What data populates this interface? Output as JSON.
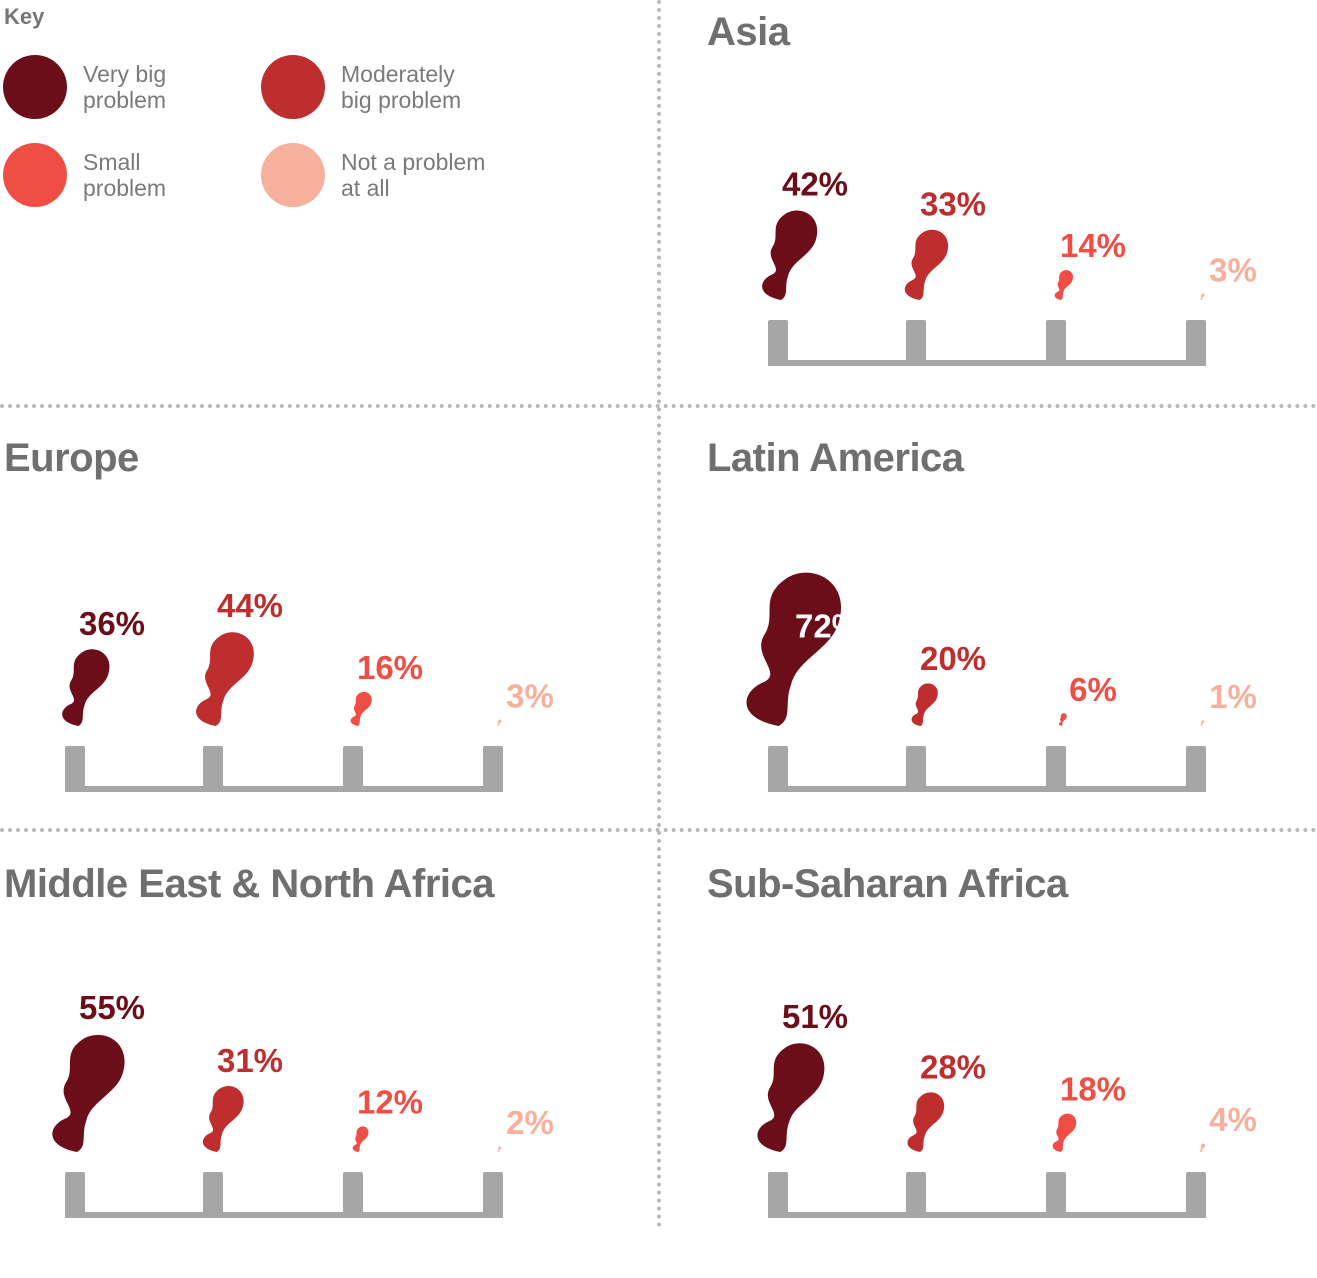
{
  "key": {
    "title": "Key",
    "items": [
      {
        "label_lines": [
          "Very big",
          "problem"
        ],
        "color": "#6b0e1a"
      },
      {
        "label_lines": [
          "Moderately",
          "big problem"
        ],
        "color": "#be2e2e"
      },
      {
        "label_lines": [
          "Small",
          "problem"
        ],
        "color": "#ef4e45"
      },
      {
        "label_lines": [
          "Not a problem",
          "at all"
        ],
        "color": "#f7b09c"
      }
    ]
  },
  "chart_data": [
    {
      "type": "bar",
      "title": "Asia",
      "categories": [
        "Very big problem",
        "Moderately big problem",
        "Small problem",
        "Not a problem at all"
      ],
      "values": [
        42,
        33,
        14,
        3
      ],
      "labels": [
        "42%",
        "33%",
        "14%",
        "3%"
      ]
    },
    {
      "type": "bar",
      "title": "Europe",
      "categories": [
        "Very big problem",
        "Moderately big problem",
        "Small problem",
        "Not a problem at all"
      ],
      "values": [
        36,
        44,
        16,
        3
      ],
      "labels": [
        "36%",
        "44%",
        "16%",
        "3%"
      ]
    },
    {
      "type": "bar",
      "title": "Latin America",
      "categories": [
        "Very big problem",
        "Moderately big problem",
        "Small problem",
        "Not a problem at all"
      ],
      "values": [
        72,
        20,
        6,
        1
      ],
      "labels": [
        "72%",
        "20%",
        "6%",
        "1%"
      ]
    },
    {
      "type": "bar",
      "title": "Middle East & North Africa",
      "categories": [
        "Very big problem",
        "Moderately big problem",
        "Small problem",
        "Not a problem at all"
      ],
      "values": [
        55,
        31,
        12,
        2
      ],
      "labels": [
        "55%",
        "31%",
        "12%",
        "2%"
      ]
    },
    {
      "type": "bar",
      "title": "Sub-Saharan Africa",
      "categories": [
        "Very big problem",
        "Moderately big problem",
        "Small problem",
        "Not a problem at all"
      ],
      "values": [
        51,
        28,
        18,
        4
      ],
      "labels": [
        "51%",
        "28%",
        "18%",
        "4%"
      ]
    }
  ],
  "colors": {
    "series": [
      "#6b0e1a",
      "#be2e2e",
      "#ef4e45",
      "#f7b09c"
    ],
    "chimney": "#a6a6a7",
    "inside_label": "#ffffff"
  }
}
